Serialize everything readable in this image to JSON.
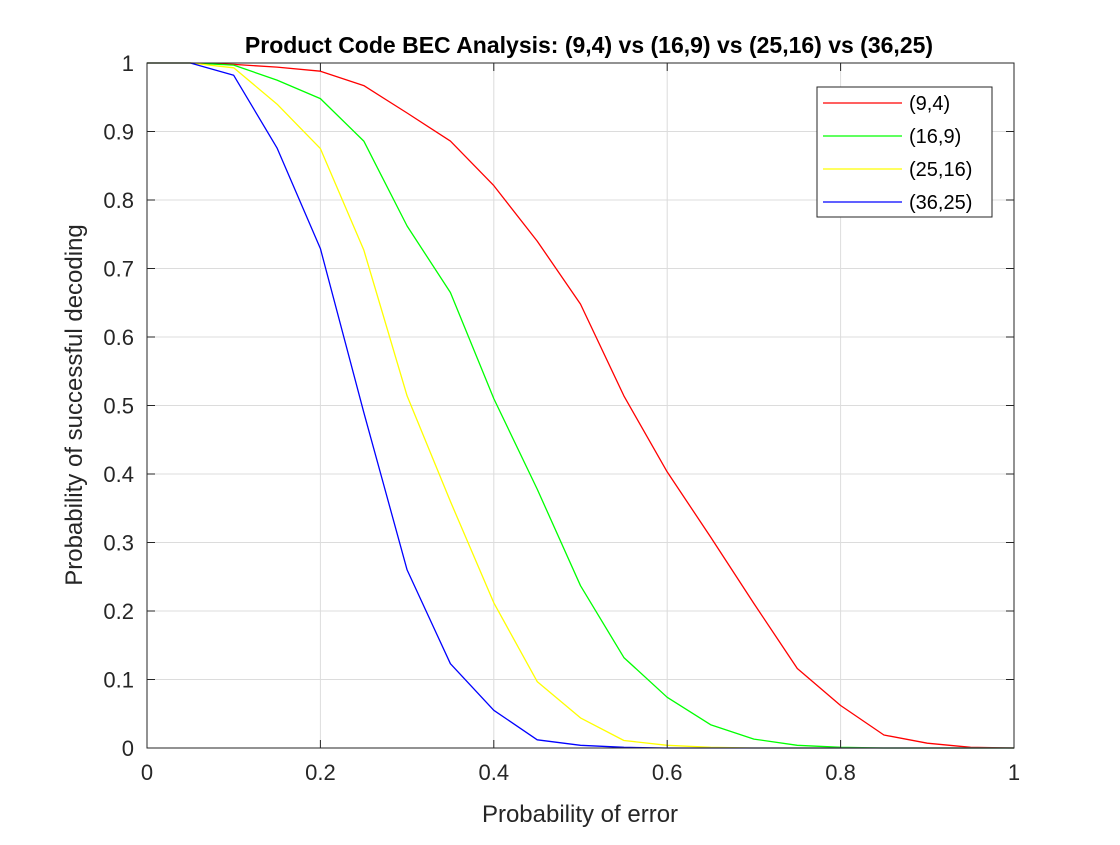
{
  "chart_data": {
    "type": "line",
    "title": "Product Code BEC Analysis: (9,4) vs (16,9) vs (25,16) vs (36,25)",
    "xlabel": "Probability of error",
    "ylabel": "Probability of successful decoding",
    "xlim": [
      0,
      1
    ],
    "ylim": [
      0,
      1
    ],
    "xticks": [
      "0",
      "0.2",
      "0.4",
      "0.6",
      "0.8",
      "1"
    ],
    "yticks": [
      "0",
      "0.1",
      "0.2",
      "0.3",
      "0.4",
      "0.5",
      "0.6",
      "0.7",
      "0.8",
      "0.9",
      "1"
    ],
    "grid": true,
    "legend_position": "top-right",
    "x": [
      0,
      0.05,
      0.1,
      0.15,
      0.2,
      0.25,
      0.3,
      0.35,
      0.4,
      0.45,
      0.5,
      0.55,
      0.6,
      0.65,
      0.7,
      0.75,
      0.8,
      0.85,
      0.9,
      0.95,
      1.0
    ],
    "series": [
      {
        "name": "(9,4)",
        "color": "#ff0000",
        "values": [
          1,
          1,
          0.998,
          0.994,
          0.988,
          0.967,
          0.927,
          0.886,
          0.821,
          0.74,
          0.648,
          0.514,
          0.403,
          0.308,
          0.211,
          0.116,
          0.062,
          0.019,
          0.007,
          0.001,
          0
        ]
      },
      {
        "name": "(16,9)",
        "color": "#00ff00",
        "values": [
          1,
          1,
          0.997,
          0.975,
          0.948,
          0.886,
          0.762,
          0.665,
          0.51,
          0.378,
          0.237,
          0.132,
          0.074,
          0.034,
          0.013,
          0.004,
          0.001,
          0,
          0,
          0,
          0
        ]
      },
      {
        "name": "(25,16)",
        "color": "#ffff00",
        "values": [
          1,
          1,
          0.993,
          0.94,
          0.875,
          0.727,
          0.514,
          0.36,
          0.212,
          0.097,
          0.044,
          0.011,
          0.004,
          0.001,
          0,
          0,
          0,
          0,
          0,
          0,
          0
        ]
      },
      {
        "name": "(36,25)",
        "color": "#0000ff",
        "values": [
          1,
          1,
          0.982,
          0.876,
          0.729,
          0.49,
          0.26,
          0.123,
          0.055,
          0.012,
          0.004,
          0.001,
          0,
          0,
          0,
          0,
          0,
          0,
          0,
          0,
          0
        ]
      }
    ]
  }
}
